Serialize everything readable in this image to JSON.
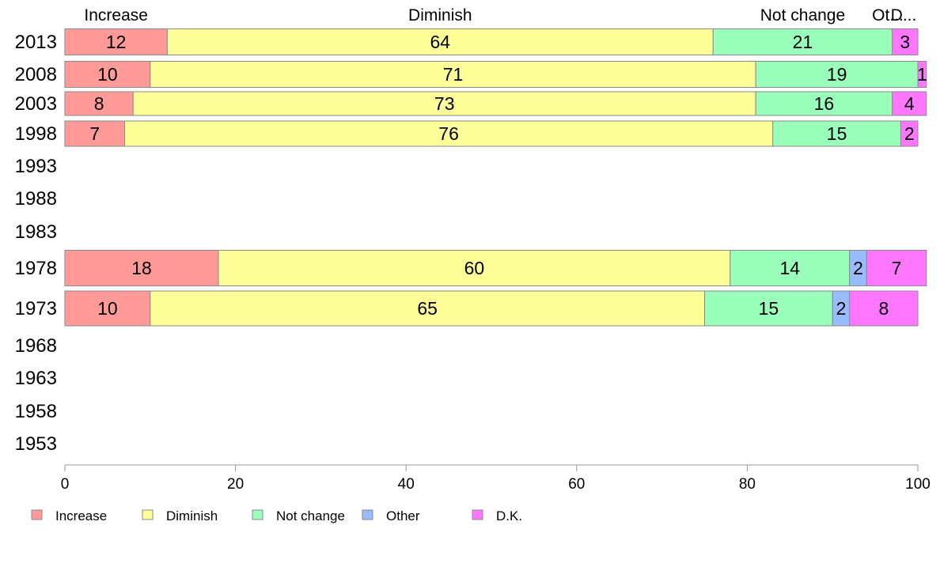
{
  "chart_data": {
    "type": "bar",
    "orientation": "horizontal",
    "stacked": true,
    "categories": [
      "2013",
      "2008",
      "2003",
      "1998",
      "1993",
      "1988",
      "1983",
      "1978",
      "1973",
      "1968",
      "1963",
      "1958",
      "1953"
    ],
    "series": [
      {
        "name": "Increase",
        "color": "#ff9a99",
        "values": [
          12,
          10,
          8,
          7,
          null,
          null,
          null,
          18,
          10,
          null,
          null,
          null,
          null
        ]
      },
      {
        "name": "Diminish",
        "color": "#ffff99",
        "values": [
          64,
          71,
          73,
          76,
          null,
          null,
          null,
          60,
          65,
          null,
          null,
          null,
          null
        ]
      },
      {
        "name": "Not change",
        "color": "#99ffbb",
        "values": [
          21,
          19,
          16,
          15,
          null,
          null,
          null,
          14,
          15,
          null,
          null,
          null,
          null
        ]
      },
      {
        "name": "Other",
        "color": "#99bbff",
        "values": [
          0,
          0,
          0,
          0,
          null,
          null,
          null,
          2,
          2,
          null,
          null,
          null,
          null
        ]
      },
      {
        "name": "D.K.",
        "color": "#ff77ff",
        "values": [
          3,
          1,
          4,
          2,
          null,
          null,
          null,
          7,
          8,
          null,
          null,
          null,
          null
        ]
      }
    ],
    "top_labels": [
      "Increase",
      "Diminish",
      "Not change",
      "Ot...",
      "D..."
    ],
    "x_ticks": [
      "0",
      "20",
      "40",
      "60",
      "80",
      "100"
    ],
    "xlim": [
      0,
      100
    ],
    "grid": false,
    "legend_position": "bottom-left"
  }
}
